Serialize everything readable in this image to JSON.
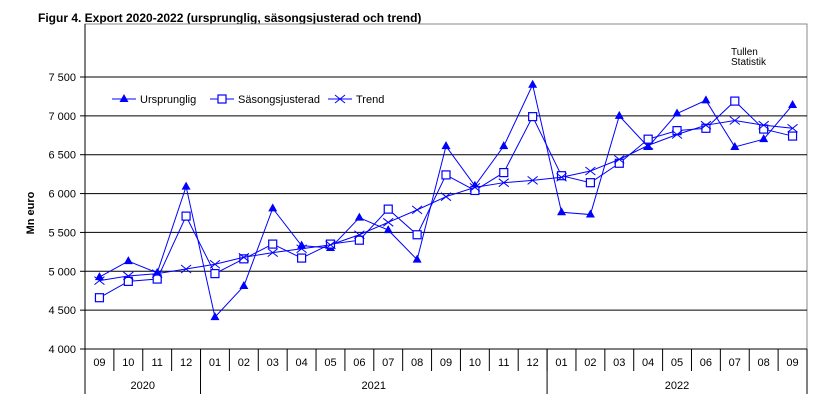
{
  "chart_data": {
    "type": "line",
    "title": "Figur  4. Export 2020-2022 (ursprunglig, säsongsjusterad och trend)",
    "source": [
      "Tullen",
      "Statistik"
    ],
    "ylabel": "Mn euro",
    "xlabel": "",
    "ylim": [
      4000,
      7500
    ],
    "yticks": [
      4000,
      4500,
      5000,
      5500,
      6000,
      6500,
      7000,
      7500
    ],
    "ytick_labels": [
      "4 000",
      "4 500",
      "5 000",
      "5 500",
      "6 000",
      "6 500",
      "7 000",
      "7 500"
    ],
    "grid": true,
    "legend_position": "top-left",
    "categories": [
      "09",
      "10",
      "11",
      "12",
      "01",
      "02",
      "03",
      "04",
      "05",
      "06",
      "07",
      "08",
      "09",
      "10",
      "11",
      "12",
      "01",
      "02",
      "03",
      "04",
      "05",
      "06",
      "07",
      "08",
      "09"
    ],
    "years": [
      {
        "label": "2020",
        "span": 4
      },
      {
        "label": "2021",
        "span": 12
      },
      {
        "label": "2022",
        "span": 9
      }
    ],
    "series": [
      {
        "name": "Ursprunglig",
        "marker": "triangle",
        "values": [
          4925,
          5130,
          4980,
          6090,
          4410,
          4810,
          5810,
          5330,
          5300,
          5690,
          5530,
          5150,
          6610,
          6100,
          6610,
          7400,
          5760,
          5730,
          7000,
          6600,
          7030,
          7200,
          6600,
          6700,
          7140
        ]
      },
      {
        "name": "Säsongsjusterad",
        "marker": "square",
        "values": [
          4660,
          4870,
          4900,
          5710,
          4970,
          5160,
          5350,
          5170,
          5350,
          5400,
          5800,
          5470,
          6240,
          6040,
          6270,
          6990,
          6230,
          6140,
          6390,
          6700,
          6810,
          6840,
          7190,
          6830,
          6740
        ]
      },
      {
        "name": "Trend",
        "marker": "x",
        "values": [
          4880,
          4940,
          4970,
          5030,
          5090,
          5180,
          5240,
          5290,
          5340,
          5470,
          5630,
          5790,
          5960,
          6080,
          6140,
          6170,
          6210,
          6290,
          6440,
          6620,
          6760,
          6880,
          6940,
          6880,
          6840
        ]
      }
    ],
    "color": "#0000ff"
  }
}
